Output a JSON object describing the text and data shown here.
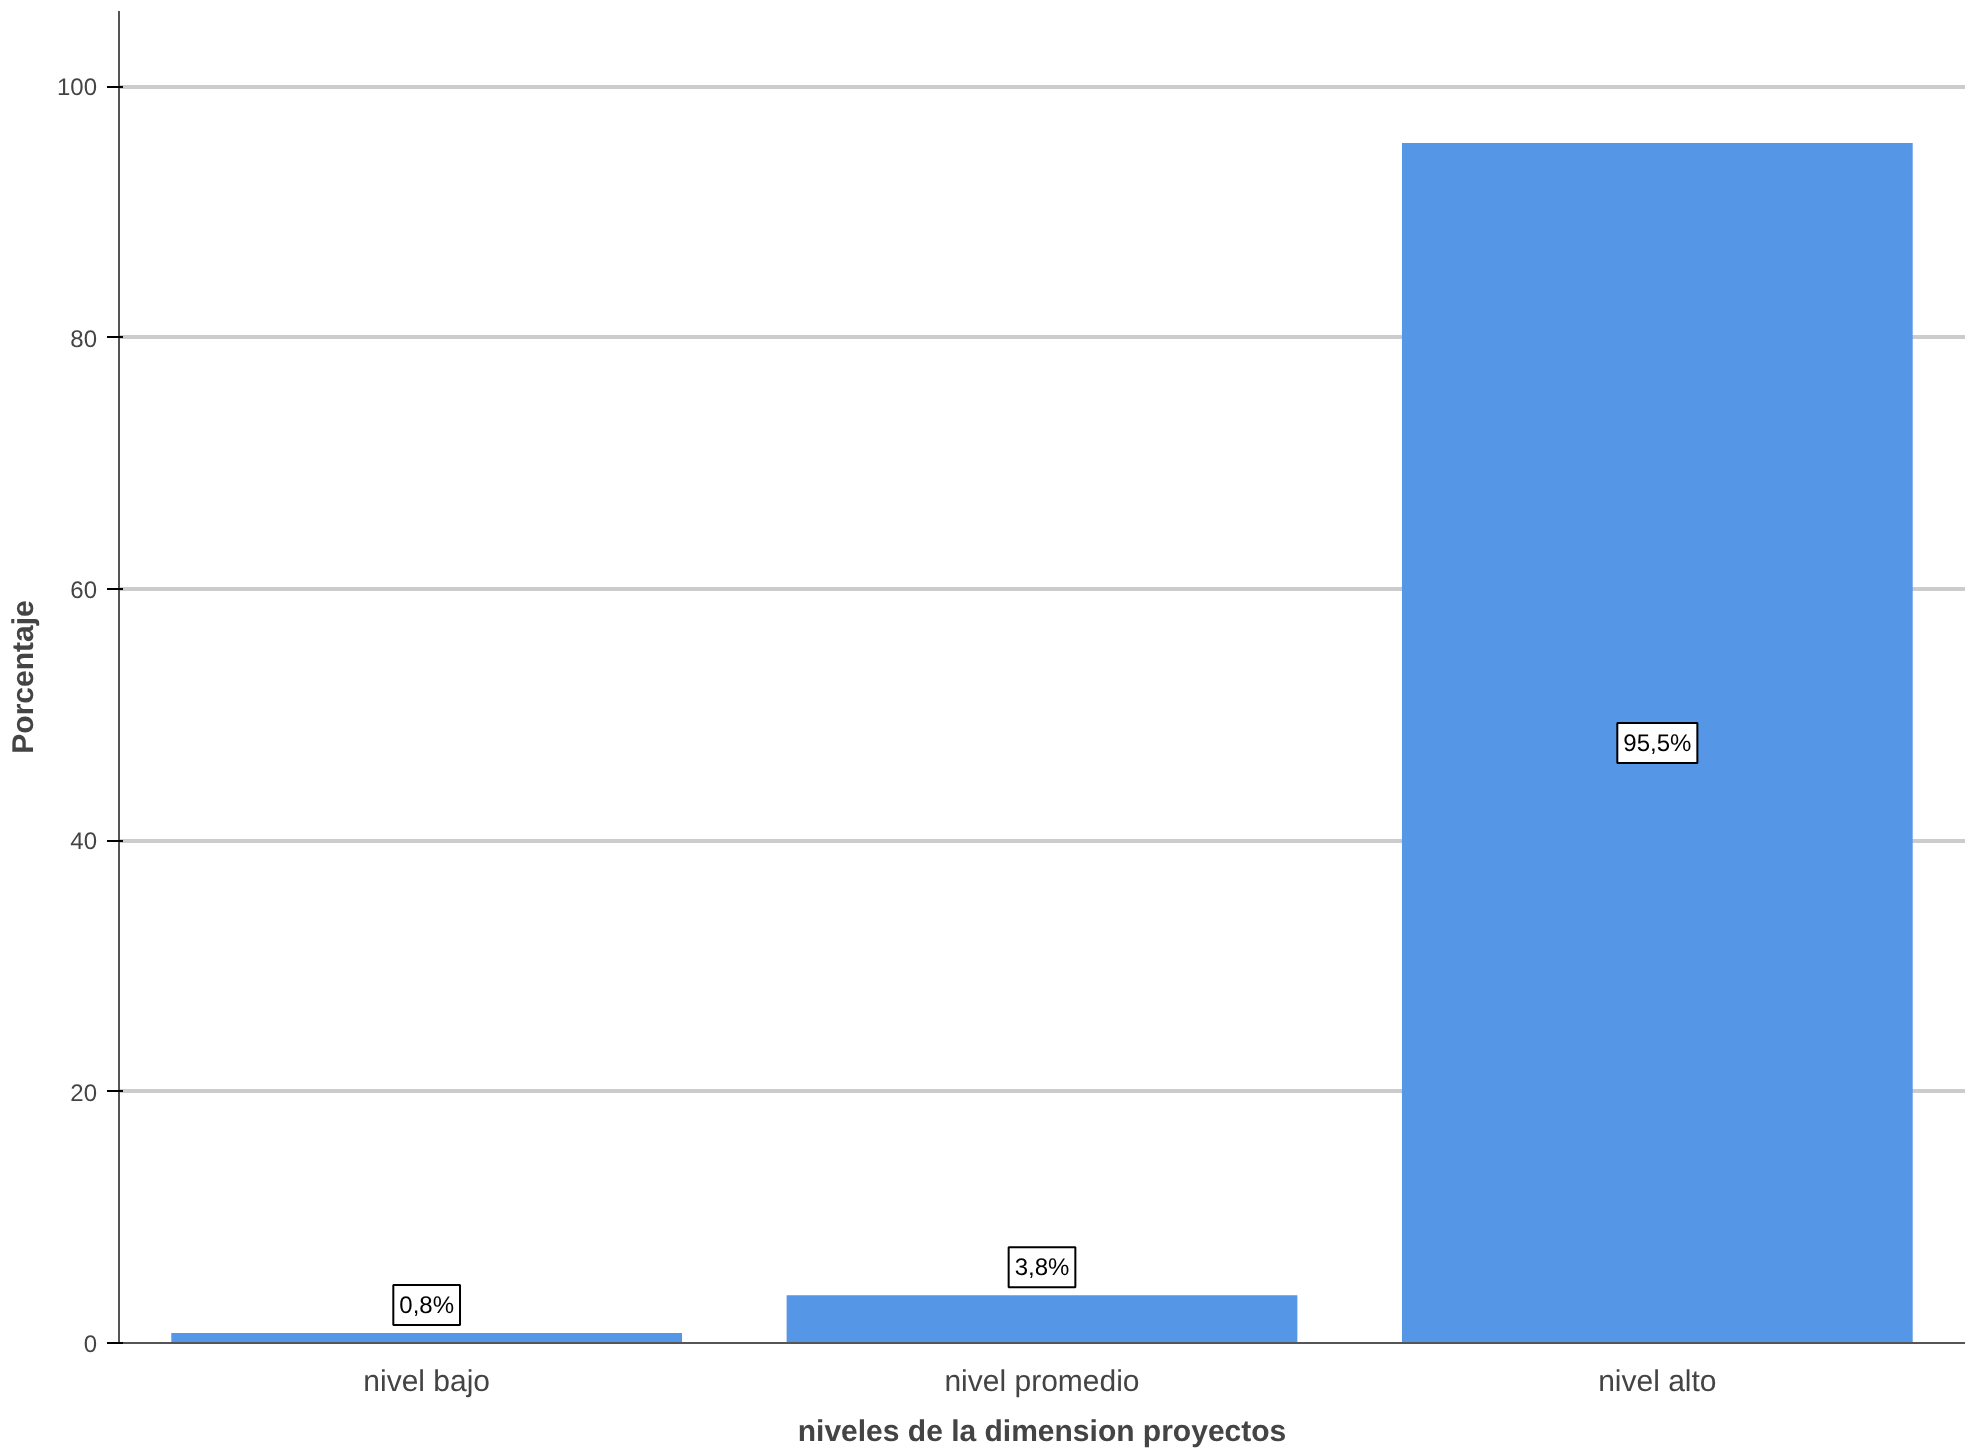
{
  "chart_data": {
    "type": "bar",
    "xlabel": "niveles de la dimension proyectos",
    "ylabel": "Porcentaje",
    "categories": [
      "nivel bajo",
      "nivel promedio",
      "nivel alto"
    ],
    "values": [
      0.8,
      3.8,
      95.5
    ],
    "value_labels": [
      "0,8%",
      "3,8%",
      "95,5%"
    ],
    "color": "#5596e6",
    "ylim": [
      0,
      106
    ],
    "yticks": [
      0,
      20,
      40,
      60,
      80,
      100
    ],
    "grid": "y"
  }
}
